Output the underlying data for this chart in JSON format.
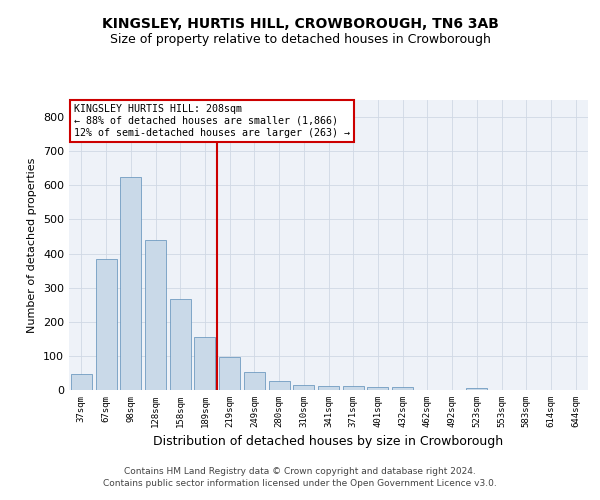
{
  "title": "KINGSLEY, HURTIS HILL, CROWBOROUGH, TN6 3AB",
  "subtitle": "Size of property relative to detached houses in Crowborough",
  "xlabel": "Distribution of detached houses by size in Crowborough",
  "ylabel": "Number of detached properties",
  "footer_line1": "Contains HM Land Registry data © Crown copyright and database right 2024.",
  "footer_line2": "Contains public sector information licensed under the Open Government Licence v3.0.",
  "bin_labels": [
    "37sqm",
    "67sqm",
    "98sqm",
    "128sqm",
    "158sqm",
    "189sqm",
    "219sqm",
    "249sqm",
    "280sqm",
    "310sqm",
    "341sqm",
    "371sqm",
    "401sqm",
    "432sqm",
    "462sqm",
    "492sqm",
    "523sqm",
    "553sqm",
    "583sqm",
    "614sqm",
    "644sqm"
  ],
  "bar_values": [
    46,
    385,
    625,
    440,
    268,
    155,
    96,
    52,
    27,
    15,
    11,
    11,
    10,
    10,
    0,
    0,
    7,
    0,
    0,
    0,
    0
  ],
  "bar_color": "#c9d9e8",
  "bar_edge_color": "#5b8db8",
  "grid_color": "#d0d8e4",
  "bg_color": "#eef2f8",
  "vline_x": 5.5,
  "vline_color": "#cc0000",
  "annotation_text": "KINGSLEY HURTIS HILL: 208sqm\n← 88% of detached houses are smaller (1,866)\n12% of semi-detached houses are larger (263) →",
  "annotation_box_edgecolor": "#cc0000",
  "ylim": [
    0,
    850
  ],
  "yticks": [
    0,
    100,
    200,
    300,
    400,
    500,
    600,
    700,
    800
  ],
  "title_fontsize": 10,
  "subtitle_fontsize": 9,
  "ylabel_fontsize": 8,
  "xlabel_fontsize": 9,
  "xtick_fontsize": 6.5,
  "ytick_fontsize": 8,
  "footer_fontsize": 6.5
}
